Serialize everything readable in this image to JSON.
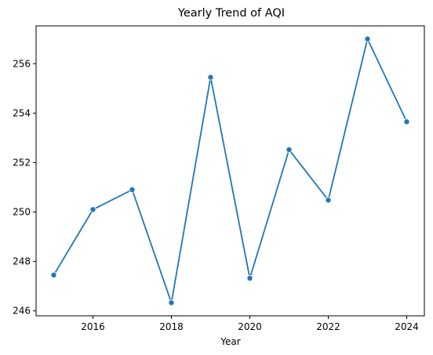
{
  "chart_data": {
    "type": "line",
    "title": "Yearly Trend of AQI",
    "xlabel": "Year",
    "ylabel": "",
    "x": [
      2015,
      2016,
      2017,
      2018,
      2019,
      2020,
      2021,
      2022,
      2023,
      2024
    ],
    "series": [
      {
        "values": [
          247.45,
          250.1,
          250.9,
          246.33,
          255.45,
          247.32,
          252.52,
          250.48,
          257.0,
          253.65
        ],
        "color": "#1f77b4"
      }
    ],
    "xticks": [
      2016,
      2018,
      2020,
      2022,
      2024
    ],
    "yticks": [
      246,
      248,
      250,
      252,
      254,
      256
    ],
    "xlim": [
      2014.55,
      2024.45
    ],
    "ylim": [
      245.8,
      257.53
    ],
    "grid": false,
    "legend": "none",
    "marker": "circle"
  }
}
